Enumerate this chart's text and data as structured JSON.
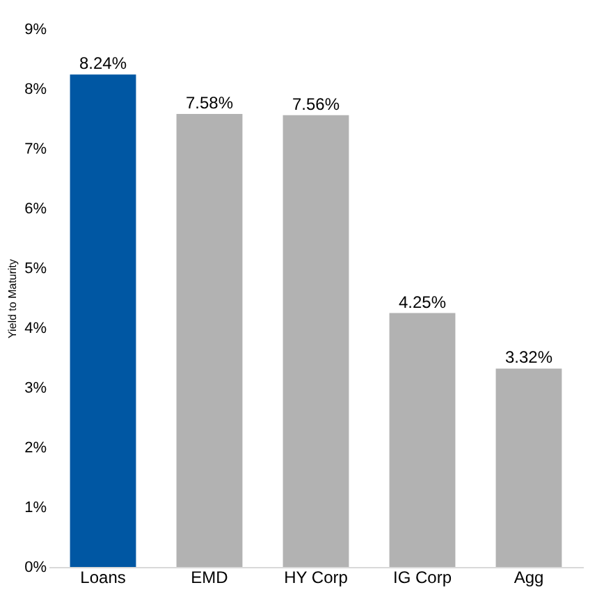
{
  "chart_data": {
    "type": "bar",
    "ylabel": "Yield to Maturity",
    "categories": [
      "Loans",
      "EMD",
      "HY Corp",
      "IG Corp",
      "Agg"
    ],
    "values": [
      8.24,
      7.58,
      7.56,
      4.25,
      3.32
    ],
    "colors": [
      "#0057a3",
      "#b2b2b2",
      "#b2b2b2",
      "#b2b2b2",
      "#b2b2b2"
    ],
    "value_labels": [
      "8.24%",
      "7.58%",
      "7.56%",
      "4.25%",
      "3.32%"
    ],
    "ylim": [
      0,
      9
    ],
    "yticks": [
      {
        "value": 0,
        "label": "0%"
      },
      {
        "value": 1,
        "label": "1%"
      },
      {
        "value": 2,
        "label": "2%"
      },
      {
        "value": 3,
        "label": "3%"
      },
      {
        "value": 4,
        "label": "4%"
      },
      {
        "value": 5,
        "label": "5%"
      },
      {
        "value": 6,
        "label": "6%"
      },
      {
        "value": 7,
        "label": "7%"
      },
      {
        "value": 8,
        "label": "8%"
      },
      {
        "value": 9,
        "label": "9%"
      }
    ],
    "grid": false
  }
}
